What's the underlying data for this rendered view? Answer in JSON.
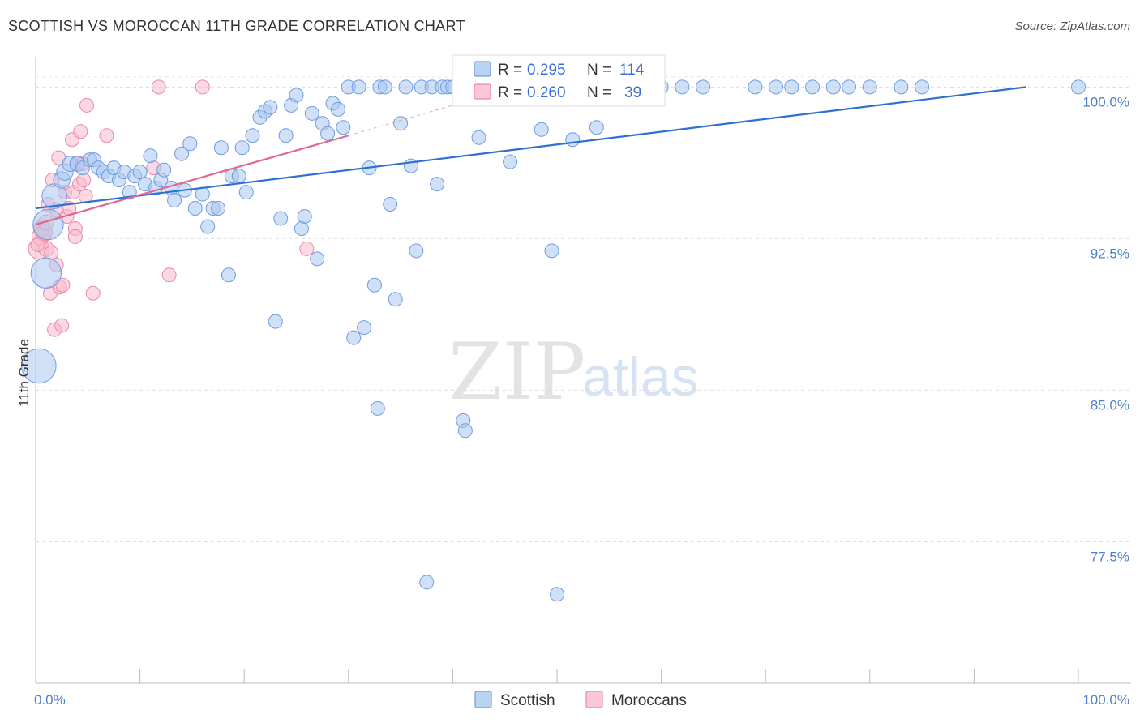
{
  "header": {
    "title": "SCOTTISH VS MOROCCAN 11TH GRADE CORRELATION CHART",
    "source": "Source: ZipAtlas.com"
  },
  "watermark": {
    "zip": "ZIP",
    "atlas": "atlas"
  },
  "legend": {
    "rows": [
      {
        "r_label": "R =",
        "r_value": "0.295",
        "n_label": "N =",
        "n_value": "114",
        "color": "#a9c8f0"
      },
      {
        "r_label": "R =",
        "r_value": "0.260",
        "n_label": "N =",
        "n_value": "39",
        "color": "#f7b9cc"
      }
    ]
  },
  "bottom_legend": {
    "items": [
      "Scottish",
      "Moroccans"
    ]
  },
  "colors": {
    "scottish_fill": "#a9c8f0",
    "scottish_stroke": "#6f9be0",
    "scottish_line": "#2d6fd2",
    "moroccan_fill": "#f7b9cc",
    "moroccan_stroke": "#e88aa8",
    "moroccan_line": "#e0678e",
    "tick_text": "#4a7fd1"
  },
  "chart_data": {
    "type": "scatter",
    "title": "SCOTTISH VS MOROCCAN 11TH GRADE CORRELATION CHART",
    "xlabel": "",
    "ylabel": "11th Grade",
    "xlim": [
      0,
      100
    ],
    "ylim": [
      70.5,
      101.5
    ],
    "x_tick_labels": [
      "0.0%",
      "100.0%"
    ],
    "y_ticks": [
      77.5,
      85.0,
      92.5,
      100.0
    ],
    "y_tick_labels": [
      "77.5%",
      "85.0%",
      "92.5%",
      "100.0%"
    ],
    "grid": true,
    "legend_position": "top-center",
    "series": [
      {
        "name": "Scottish",
        "R": 0.295,
        "N": 114,
        "trend": {
          "x": [
            0,
            95
          ],
          "y": [
            94.0,
            100.0
          ]
        },
        "points": [
          [
            0.3,
            86.2,
            2.5
          ],
          [
            1.0,
            90.8,
            2.2
          ],
          [
            1.2,
            93.2,
            2.2
          ],
          [
            1.8,
            94.6,
            1.8
          ],
          [
            2.5,
            95.4,
            1.2
          ],
          [
            2.8,
            95.8,
            1.2
          ],
          [
            3.3,
            96.2,
            1.1
          ],
          [
            4.0,
            96.2,
            1.1
          ],
          [
            4.5,
            96.0,
            1.0
          ],
          [
            5.2,
            96.4,
            1.0
          ],
          [
            5.6,
            96.4,
            1.0
          ],
          [
            6.0,
            96.0,
            1.0
          ],
          [
            6.5,
            95.8,
            1.0
          ],
          [
            7.0,
            95.6,
            1.0
          ],
          [
            7.5,
            96.0,
            1.0
          ],
          [
            8.0,
            95.4,
            1.0
          ],
          [
            8.5,
            95.8,
            1.0
          ],
          [
            9.0,
            94.8,
            1.0
          ],
          [
            9.5,
            95.6,
            1.0
          ],
          [
            10.0,
            95.8,
            1.0
          ],
          [
            10.5,
            95.2,
            1.0
          ],
          [
            11.0,
            96.6,
            1.0
          ],
          [
            11.5,
            95.0,
            1.0
          ],
          [
            12.0,
            95.4,
            1.0
          ],
          [
            12.3,
            95.9,
            1.0
          ],
          [
            13.0,
            95.0,
            1.0
          ],
          [
            13.3,
            94.4,
            1.0
          ],
          [
            14.0,
            96.7,
            1.0
          ],
          [
            14.3,
            94.9,
            1.0
          ],
          [
            14.8,
            97.2,
            1.0
          ],
          [
            15.3,
            94.0,
            1.0
          ],
          [
            16.0,
            94.7,
            1.0
          ],
          [
            16.5,
            93.1,
            1.0
          ],
          [
            17.0,
            94.0,
            1.0
          ],
          [
            17.5,
            94.0,
            1.0
          ],
          [
            17.8,
            97.0,
            1.0
          ],
          [
            18.5,
            90.7,
            1.0
          ],
          [
            18.8,
            95.6,
            1.0
          ],
          [
            19.5,
            95.6,
            1.0
          ],
          [
            19.8,
            97.0,
            1.0
          ],
          [
            20.2,
            94.8,
            1.0
          ],
          [
            20.8,
            97.6,
            1.0
          ],
          [
            21.5,
            98.5,
            1.0
          ],
          [
            22.0,
            98.8,
            1.0
          ],
          [
            22.5,
            99.0,
            1.0
          ],
          [
            23.0,
            88.4,
            1.0
          ],
          [
            23.5,
            93.5,
            1.0
          ],
          [
            24.0,
            97.6,
            1.0
          ],
          [
            24.5,
            99.1,
            1.0
          ],
          [
            25.0,
            99.6,
            1.0
          ],
          [
            25.5,
            93.0,
            1.0
          ],
          [
            25.8,
            93.6,
            1.0
          ],
          [
            26.5,
            98.7,
            1.0
          ],
          [
            27.0,
            91.5,
            1.0
          ],
          [
            27.5,
            98.2,
            1.0
          ],
          [
            28.0,
            97.7,
            1.0
          ],
          [
            28.5,
            99.2,
            1.0
          ],
          [
            29.0,
            98.9,
            1.0
          ],
          [
            29.5,
            98.0,
            1.0
          ],
          [
            30.0,
            100.0,
            1.0
          ],
          [
            30.5,
            87.6,
            1.0
          ],
          [
            31.0,
            100.0,
            1.0
          ],
          [
            31.5,
            88.1,
            1.0
          ],
          [
            32.0,
            96.0,
            1.0
          ],
          [
            32.5,
            90.2,
            1.0
          ],
          [
            32.8,
            84.1,
            1.0
          ],
          [
            33.0,
            100.0,
            1.0
          ],
          [
            33.5,
            100.0,
            1.0
          ],
          [
            34.0,
            94.2,
            1.0
          ],
          [
            34.5,
            89.5,
            1.0
          ],
          [
            35.0,
            98.2,
            1.0
          ],
          [
            35.5,
            100.0,
            1.0
          ],
          [
            36.0,
            96.1,
            1.0
          ],
          [
            36.5,
            91.9,
            1.0
          ],
          [
            37.0,
            100.0,
            1.0
          ],
          [
            37.5,
            75.5,
            1.0
          ],
          [
            38.0,
            100.0,
            1.0
          ],
          [
            38.5,
            95.2,
            1.0
          ],
          [
            39.0,
            100.0,
            1.0
          ],
          [
            39.5,
            100.0,
            1.0
          ],
          [
            40.0,
            100.0,
            1.0
          ],
          [
            41.0,
            83.5,
            1.0
          ],
          [
            41.2,
            83.0,
            1.0
          ],
          [
            42.0,
            100.0,
            1.0
          ],
          [
            42.5,
            97.5,
            1.0
          ],
          [
            43.0,
            100.0,
            1.0
          ],
          [
            44.0,
            100.0,
            1.0
          ],
          [
            45.0,
            100.0,
            1.0
          ],
          [
            45.5,
            96.3,
            1.0
          ],
          [
            46.0,
            100.0,
            1.0
          ],
          [
            47.0,
            100.0,
            1.0
          ],
          [
            48.5,
            97.9,
            1.0
          ],
          [
            49.0,
            100.0,
            1.0
          ],
          [
            49.5,
            91.9,
            1.0
          ],
          [
            50.0,
            74.9,
            1.0
          ],
          [
            51.0,
            100.0,
            1.0
          ],
          [
            51.5,
            97.4,
            1.0
          ],
          [
            52.0,
            100.0,
            1.0
          ],
          [
            53.0,
            100.0,
            1.0
          ],
          [
            53.8,
            98.0,
            1.0
          ],
          [
            56.0,
            100.0,
            1.0
          ],
          [
            58.0,
            100.0,
            1.0
          ],
          [
            60.0,
            100.0,
            1.0
          ],
          [
            62.0,
            100.0,
            1.0
          ],
          [
            64.0,
            100.0,
            1.0
          ],
          [
            69.0,
            100.0,
            1.0
          ],
          [
            71.0,
            100.0,
            1.0
          ],
          [
            72.5,
            100.0,
            1.0
          ],
          [
            74.5,
            100.0,
            1.0
          ],
          [
            76.5,
            100.0,
            1.0
          ],
          [
            78.0,
            100.0,
            1.0
          ],
          [
            80.0,
            100.0,
            1.0
          ],
          [
            83.0,
            100.0,
            1.0
          ],
          [
            85.0,
            100.0,
            1.0
          ],
          [
            100.0,
            100.0,
            1.0
          ]
        ]
      },
      {
        "name": "Moroccans",
        "R": 0.26,
        "N": 39,
        "trend": {
          "x": [
            0,
            30
          ],
          "y": [
            93.2,
            97.6
          ]
        },
        "trend_dashed": {
          "x": [
            30,
            42
          ],
          "y": [
            97.6,
            99.4
          ]
        },
        "points": [
          [
            0.3,
            92.0,
            1.5
          ],
          [
            0.5,
            92.6,
            1.3
          ],
          [
            0.6,
            93.0,
            1.2
          ],
          [
            0.8,
            92.8,
            1.2
          ],
          [
            1.0,
            93.3,
            1.1
          ],
          [
            1.0,
            92.0,
            1.1
          ],
          [
            1.2,
            94.2,
            1.0
          ],
          [
            1.4,
            89.8,
            1.0
          ],
          [
            1.5,
            91.8,
            1.0
          ],
          [
            1.6,
            95.4,
            1.0
          ],
          [
            1.8,
            88.0,
            1.0
          ],
          [
            2.0,
            91.2,
            1.0
          ],
          [
            2.0,
            93.9,
            1.0
          ],
          [
            2.2,
            96.5,
            1.0
          ],
          [
            2.3,
            90.1,
            1.0
          ],
          [
            2.5,
            88.2,
            1.0
          ],
          [
            2.6,
            90.2,
            1.0
          ],
          [
            2.8,
            94.8,
            1.0
          ],
          [
            3.0,
            93.6,
            1.0
          ],
          [
            3.2,
            94.0,
            1.0
          ],
          [
            3.5,
            97.4,
            1.0
          ],
          [
            3.6,
            94.8,
            1.0
          ],
          [
            3.8,
            93.0,
            1.0
          ],
          [
            3.8,
            92.6,
            1.0
          ],
          [
            4.0,
            96.2,
            1.0
          ],
          [
            4.2,
            95.2,
            1.0
          ],
          [
            4.3,
            97.8,
            1.0
          ],
          [
            4.5,
            96.2,
            1.0
          ],
          [
            4.6,
            95.4,
            1.0
          ],
          [
            4.8,
            94.6,
            1.0
          ],
          [
            4.9,
            99.1,
            1.0
          ],
          [
            5.5,
            89.8,
            1.0
          ],
          [
            6.8,
            97.6,
            1.0
          ],
          [
            11.3,
            96.0,
            1.0
          ],
          [
            11.8,
            100.0,
            1.0
          ],
          [
            12.8,
            90.7,
            1.0
          ],
          [
            16.0,
            100.0,
            1.0
          ],
          [
            26.0,
            92.0,
            1.0
          ],
          [
            0.2,
            92.2,
            1.0
          ]
        ]
      }
    ]
  }
}
